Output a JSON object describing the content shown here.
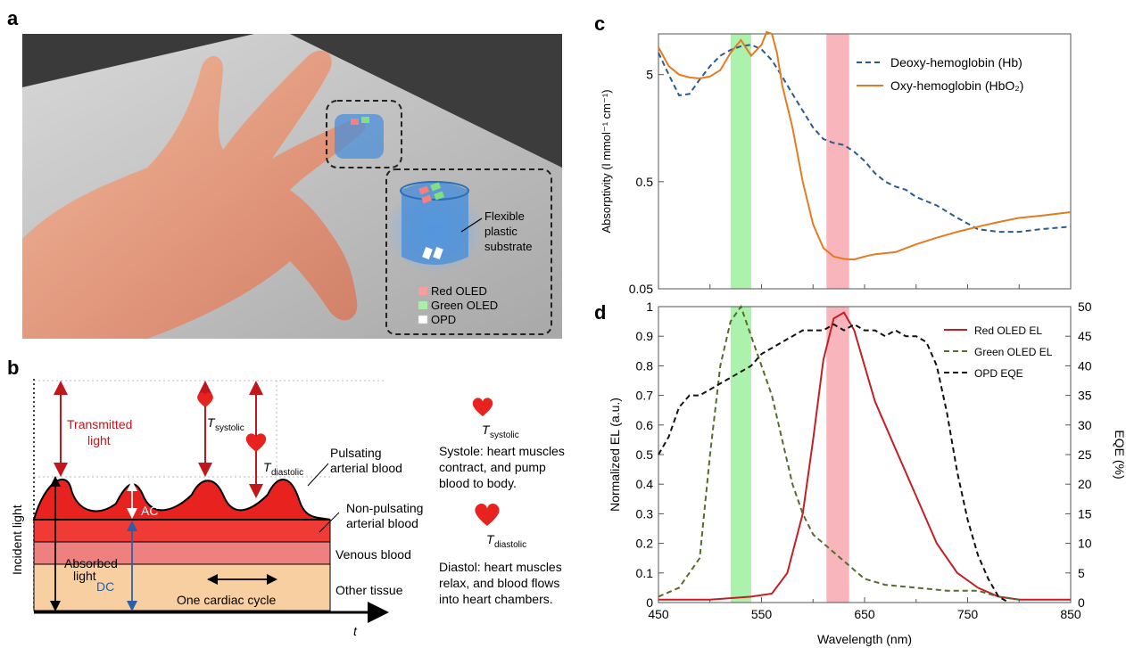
{
  "panels": {
    "a": {
      "letter": "a",
      "legend": [
        {
          "label": "Red OLED",
          "color": "#f4a0a0"
        },
        {
          "label": "Green OLED",
          "color": "#a8f0a8"
        },
        {
          "label": "OPD",
          "color": "#ffffff"
        }
      ],
      "callout": [
        "Flexible",
        "plastic",
        "substrate"
      ]
    },
    "b": {
      "letter": "b",
      "transmitted": [
        "Transmitted",
        "light"
      ],
      "t_systolic": "T",
      "t_systolic_sub": "systolic",
      "t_diastolic": "T",
      "t_diastolic_sub": "diastolic",
      "pulsating": [
        "Pulsating",
        "arterial blood"
      ],
      "nonpulsating": [
        "Non-pulsating",
        "arterial blood"
      ],
      "venous": "Venous blood",
      "other": "Other tissue",
      "ac": "AC",
      "dc": "DC",
      "absorbed": [
        "Absorbed",
        "light"
      ],
      "cycle": "One cardiac cycle",
      "incident": "Incident light",
      "t_axis": "t",
      "systole_text": [
        "Systole: heart muscles",
        "contract, and pump",
        "blood to body."
      ],
      "diastole_text": [
        "Diastol: heart muscles",
        "relax, and blood flows",
        "into heart chambers."
      ],
      "colors": {
        "pulse": "#e8231f",
        "nonpulse": "#f03a35",
        "venous": "#ef8080",
        "other": "#f8cfa0"
      }
    },
    "c": {
      "letter": "c"
    },
    "d": {
      "letter": "d"
    }
  },
  "chart_data": [
    {
      "type": "line",
      "panel": "c",
      "ylabel": "Absorptivity (l mmol⁻¹ cm⁻¹)",
      "yscale": "log",
      "ylim": [
        0.05,
        12
      ],
      "xlim": [
        450,
        850
      ],
      "yticks": [
        "5",
        "0.5",
        "0.05"
      ],
      "highlight_bands": [
        {
          "x": [
            520,
            540
          ],
          "color": "#9ef09e"
        },
        {
          "x": [
            613,
            635
          ],
          "color": "#f7a8b0"
        }
      ],
      "series": [
        {
          "name": "Deoxy-hemoglobin (Hb)",
          "style": "dashed",
          "color": "#2c5a8c",
          "x": [
            450,
            460,
            470,
            480,
            490,
            500,
            510,
            520,
            530,
            540,
            550,
            560,
            570,
            580,
            590,
            600,
            610,
            620,
            630,
            640,
            650,
            660,
            670,
            680,
            690,
            700,
            720,
            740,
            760,
            780,
            800,
            820,
            850
          ],
          "y": [
            8,
            5,
            3.2,
            3.3,
            4.5,
            6,
            7.5,
            8.5,
            9.2,
            9.5,
            8.6,
            6.8,
            4.8,
            3.3,
            2.3,
            1.6,
            1.25,
            1.15,
            1.1,
            0.95,
            0.78,
            0.6,
            0.5,
            0.45,
            0.42,
            0.36,
            0.3,
            0.23,
            0.18,
            0.17,
            0.17,
            0.18,
            0.19
          ]
        },
        {
          "name": "Oxy-hemoglobin (HbO₂)",
          "style": "solid",
          "color": "#e37b22",
          "x": [
            450,
            460,
            470,
            480,
            490,
            500,
            510,
            520,
            530,
            540,
            550,
            555,
            560,
            565,
            570,
            580,
            590,
            600,
            610,
            620,
            630,
            640,
            650,
            660,
            680,
            700,
            720,
            740,
            760,
            780,
            800,
            820,
            850
          ],
          "y": [
            9,
            6,
            5,
            4.7,
            4.6,
            4.8,
            5.5,
            8,
            10.5,
            7.5,
            9.5,
            12.5,
            12,
            8,
            4,
            1.6,
            0.5,
            0.2,
            0.12,
            0.1,
            0.095,
            0.094,
            0.1,
            0.105,
            0.11,
            0.13,
            0.15,
            0.17,
            0.19,
            0.21,
            0.23,
            0.24,
            0.26
          ]
        }
      ]
    },
    {
      "type": "line",
      "panel": "d",
      "xlabel": "Wavelength (nm)",
      "ylabel": "Normalized EL (a.u.)",
      "ylabel_right": "EQE (%)",
      "xlim": [
        450,
        850
      ],
      "ylim": [
        0,
        1
      ],
      "ylim_right": [
        0,
        50
      ],
      "xticks": [
        450,
        550,
        650,
        750,
        850
      ],
      "xticks_minor": [
        500,
        600,
        700,
        800
      ],
      "yticks": [
        0,
        0.1,
        0.2,
        0.3,
        0.4,
        0.5,
        0.6,
        0.7,
        0.8,
        0.9,
        1
      ],
      "yticks_right": [
        0,
        5,
        10,
        15,
        20,
        25,
        30,
        35,
        40,
        45,
        50
      ],
      "series": [
        {
          "name": "Red OLED EL",
          "style": "solid",
          "color": "#c31f24",
          "axis": "left",
          "x": [
            450,
            500,
            540,
            560,
            575,
            590,
            600,
            610,
            620,
            630,
            640,
            650,
            660,
            670,
            680,
            690,
            700,
            710,
            720,
            730,
            740,
            760,
            780,
            800,
            850
          ],
          "y": [
            0.01,
            0.01,
            0.02,
            0.03,
            0.1,
            0.3,
            0.55,
            0.82,
            0.96,
            0.98,
            0.92,
            0.8,
            0.68,
            0.6,
            0.52,
            0.44,
            0.36,
            0.28,
            0.2,
            0.15,
            0.1,
            0.05,
            0.02,
            0.01,
            0.01
          ]
        },
        {
          "name": "Green OLED EL",
          "style": "dashed",
          "color": "#556b2f",
          "axis": "left",
          "x": [
            450,
            470,
            490,
            500,
            510,
            520,
            530,
            540,
            550,
            560,
            570,
            580,
            590,
            600,
            610,
            620,
            630,
            640,
            650,
            670,
            700,
            730,
            760,
            780,
            800
          ],
          "y": [
            0.02,
            0.05,
            0.15,
            0.5,
            0.8,
            0.95,
            1.0,
            0.9,
            0.8,
            0.7,
            0.55,
            0.4,
            0.3,
            0.23,
            0.2,
            0.17,
            0.14,
            0.11,
            0.08,
            0.06,
            0.05,
            0.04,
            0.04,
            0.02,
            0.01
          ]
        },
        {
          "name": "OPD EQE",
          "style": "dashed",
          "color": "#111111",
          "axis": "right",
          "x": [
            450,
            460,
            470,
            480,
            490,
            500,
            510,
            520,
            530,
            540,
            550,
            560,
            570,
            580,
            590,
            600,
            610,
            620,
            630,
            640,
            650,
            660,
            670,
            680,
            690,
            700,
            710,
            720,
            730,
            740,
            750,
            760,
            770,
            780,
            790
          ],
          "y": [
            25,
            28,
            33,
            35,
            35,
            36,
            37,
            38,
            39,
            40,
            42,
            43,
            44,
            45,
            46,
            46,
            46,
            47,
            46,
            47,
            46,
            46,
            45,
            46,
            45,
            45,
            44,
            40,
            32,
            22,
            14,
            8,
            4,
            1,
            0
          ]
        }
      ]
    }
  ]
}
